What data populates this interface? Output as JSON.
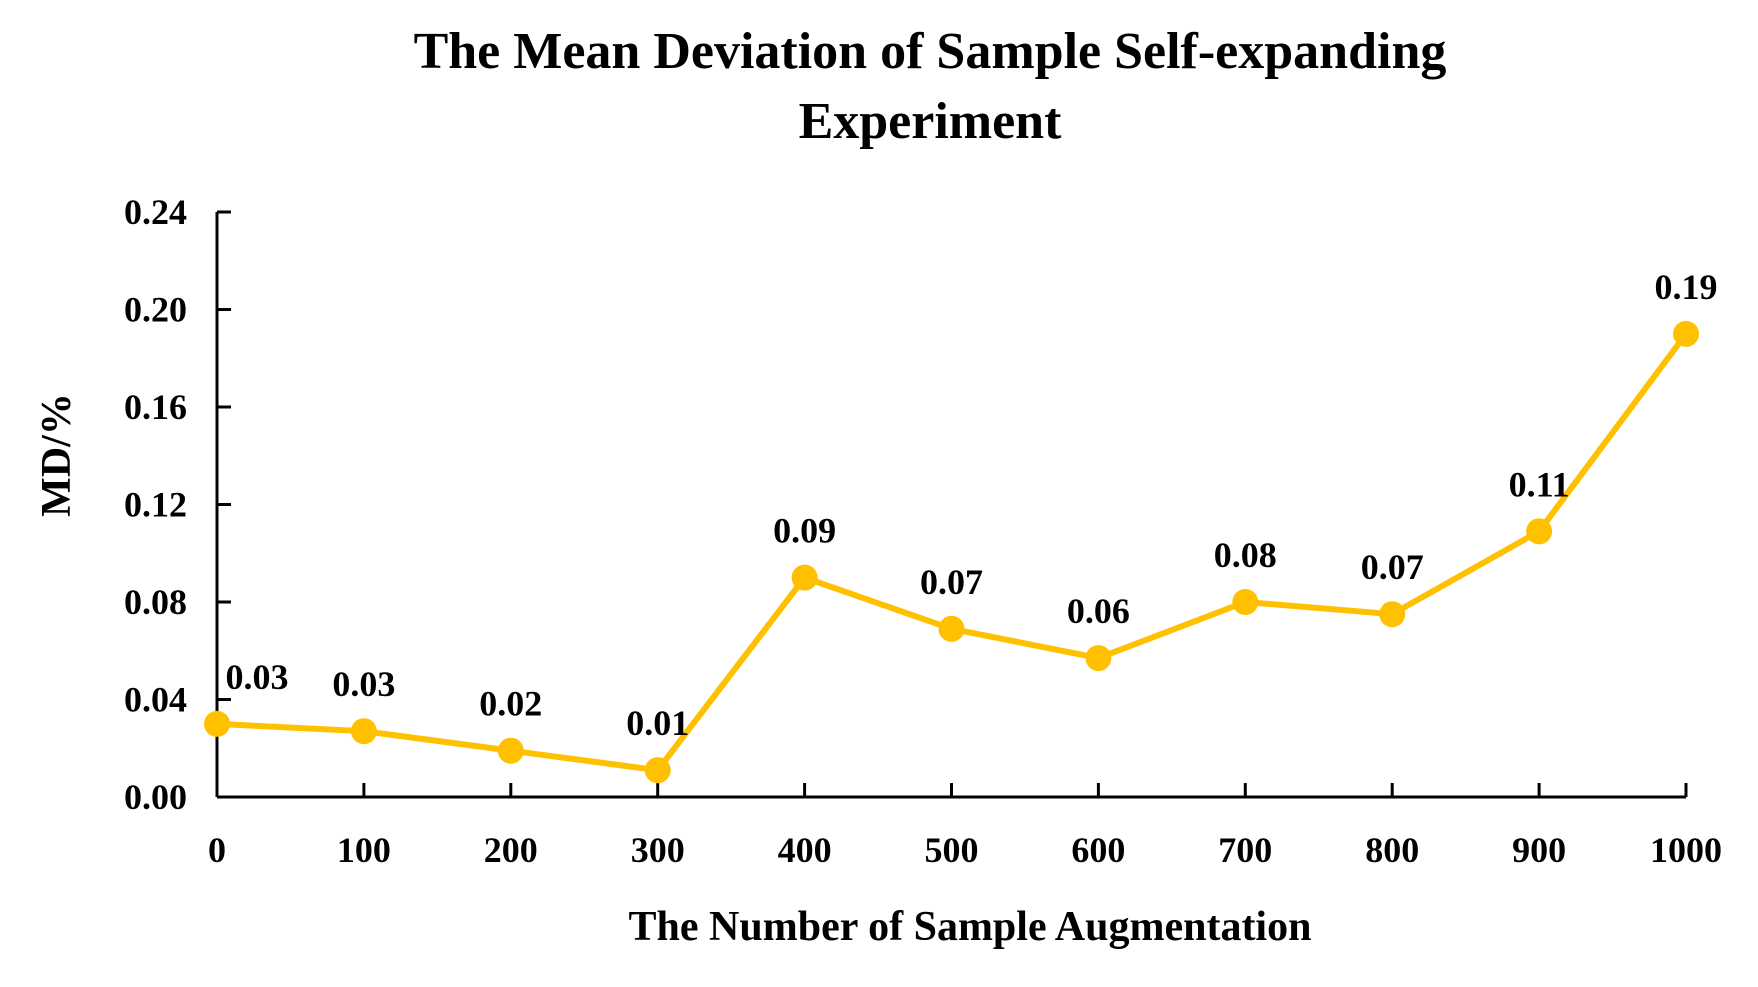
{
  "chart_data": {
    "type": "line",
    "title_line1": "The Mean Deviation of Sample Self-expanding",
    "title_line2": "Experiment",
    "xlabel": "The Number of Sample Augmentation",
    "ylabel": "MD/%",
    "x": [
      0,
      100,
      200,
      300,
      400,
      500,
      600,
      700,
      800,
      900,
      1000
    ],
    "x_tick_labels": [
      "0",
      "100",
      "200",
      "300",
      "400",
      "500",
      "600",
      "700",
      "800",
      "900",
      "1000"
    ],
    "y_tick_values": [
      0,
      0.04,
      0.08,
      0.12,
      0.16,
      0.2,
      0.24
    ],
    "y_tick_labels": [
      "0.00",
      "0.04",
      "0.08",
      "0.12",
      "0.16",
      "0.20",
      "0.24"
    ],
    "ylim": [
      0,
      0.24
    ],
    "series": [
      {
        "name": "MD",
        "color": "#FFC000",
        "values": [
          0.03,
          0.027,
          0.019,
          0.011,
          0.09,
          0.069,
          0.057,
          0.08,
          0.075,
          0.109,
          0.19
        ],
        "data_labels": [
          "0.03",
          "0.03",
          "0.02",
          "0.01",
          "0.09",
          "0.07",
          "0.06",
          "0.08",
          "0.07",
          "0.11",
          "0.19"
        ]
      }
    ],
    "grid": false,
    "legend": "none"
  }
}
